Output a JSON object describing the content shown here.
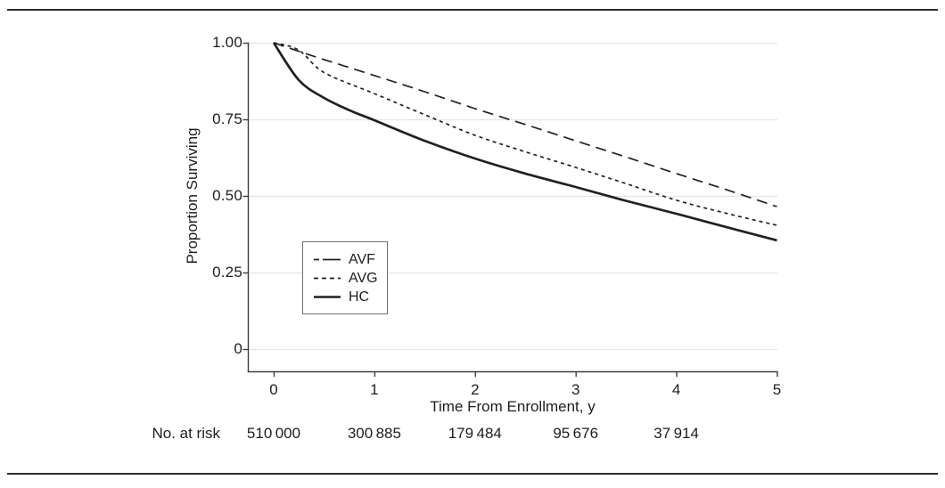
{
  "figure": {
    "kind": "kaplan-meier-survival-figure"
  },
  "colors": {
    "curve": "#231f20",
    "axis": "#3c3c3c",
    "gridline": "#e4e4e4",
    "rule": "#2d2d2d",
    "text": "#1d1d1d",
    "legend_border": "#6e6e6e",
    "background": "#ffffff"
  },
  "chart_data": {
    "type": "line",
    "title": "",
    "xlabel": "Time From Enrollment, y",
    "ylabel": "Proportion Surviving",
    "xlim": [
      0,
      5
    ],
    "ylim": [
      0,
      1
    ],
    "grid": "horizontal-light",
    "legend_position": "inside-lower-left",
    "xticks": [
      0,
      1,
      2,
      3,
      4,
      5
    ],
    "xtick_labels": [
      "0",
      "1",
      "2",
      "3",
      "4",
      "5"
    ],
    "yticks": [
      1.0,
      0.75,
      0.5,
      0.25,
      0
    ],
    "ytick_labels": [
      "1.00",
      "0.75",
      "0.50",
      "0.25",
      "0"
    ],
    "series": [
      {
        "name": "AVF",
        "line_style": "long-dash",
        "x": [
          0,
          0.25,
          0.5,
          1,
          1.5,
          2,
          2.5,
          3,
          3.5,
          4,
          4.5,
          5
        ],
        "values": [
          1.0,
          0.972,
          0.945,
          0.893,
          0.84,
          0.785,
          0.733,
          0.68,
          0.627,
          0.573,
          0.52,
          0.465
        ]
      },
      {
        "name": "AVG",
        "line_style": "short-dash",
        "x": [
          0,
          0.25,
          0.5,
          1,
          1.5,
          2,
          2.5,
          3,
          3.5,
          4,
          4.5,
          5
        ],
        "values": [
          1.0,
          0.976,
          0.903,
          0.834,
          0.765,
          0.698,
          0.644,
          0.593,
          0.54,
          0.486,
          0.443,
          0.404
        ]
      },
      {
        "name": "HC",
        "line_style": "solid",
        "x": [
          0,
          0.25,
          0.5,
          0.75,
          1,
          1.5,
          2,
          2.5,
          3,
          3.5,
          4,
          4.5,
          5
        ],
        "values": [
          1.0,
          0.878,
          0.82,
          0.78,
          0.747,
          0.68,
          0.622,
          0.573,
          0.529,
          0.484,
          0.442,
          0.398,
          0.355
        ]
      }
    ],
    "legend_entries": [
      "AVF",
      "AVG",
      "HC"
    ],
    "at_risk": {
      "label": "No. at risk",
      "times": [
        0,
        1,
        2,
        3,
        4
      ],
      "values": [
        "510 000",
        "300 885",
        "179 484",
        "95 676",
        "37 914"
      ]
    }
  }
}
